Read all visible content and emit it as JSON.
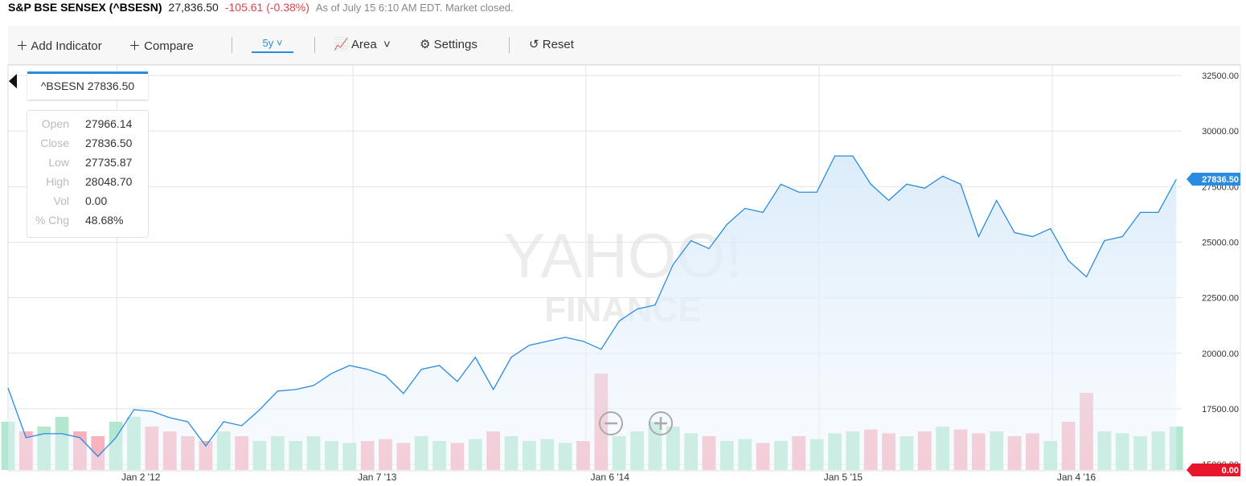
{
  "header": {
    "title": "S&P BSE SENSEX (^BSESN)",
    "price": "27,836.50",
    "change": "-105.61 (-0.38%)",
    "status": "As of July 15 6:10 AM EDT. Market closed."
  },
  "toolbar": {
    "add_indicator": "Add Indicator",
    "compare": "Compare",
    "range": "5y",
    "chart_type": "Area",
    "settings": "Settings",
    "reset": "Reset"
  },
  "tooltip": {
    "title": "^BSESN 27836.50",
    "rows": [
      {
        "label": "Open",
        "value": "27966.14"
      },
      {
        "label": "Close",
        "value": "27836.50"
      },
      {
        "label": "Low",
        "value": "27735.87"
      },
      {
        "label": "High",
        "value": "28048.70"
      },
      {
        "label": "Vol",
        "value": "0.00"
      },
      {
        "label": "% Chg",
        "value": "48.68%"
      }
    ]
  },
  "watermark": {
    "line1": "YAHOO!",
    "line2": "FINANCE"
  },
  "volume_tag": "0.00",
  "chart_data": {
    "type": "area",
    "color": "#2a8ce0",
    "x": [
      0,
      4,
      8,
      12,
      16,
      20,
      24,
      28,
      32,
      36,
      40,
      44,
      48,
      52,
      56,
      60,
      64,
      68,
      72,
      76,
      80,
      84,
      88,
      92,
      96,
      100,
      104,
      108,
      112,
      116,
      120,
      124,
      128,
      132,
      136,
      140,
      144,
      148,
      152,
      156,
      160,
      164,
      168,
      172,
      176,
      180,
      184,
      188,
      192,
      196,
      200,
      204,
      208,
      212,
      216,
      220,
      224,
      228,
      232,
      236,
      240,
      244,
      248,
      252,
      256,
      260
    ],
    "values": [
      18440,
      16200,
      16380,
      16380,
      16200,
      15360,
      16200,
      17460,
      17390,
      17100,
      16920,
      15830,
      16920,
      16740,
      17460,
      18300,
      18370,
      18550,
      19090,
      19450,
      19280,
      18990,
      18190,
      19280,
      19450,
      18730,
      19820,
      18370,
      19820,
      20360,
      20540,
      20720,
      20540,
      20180,
      21450,
      21990,
      22170,
      23990,
      25070,
      24710,
      25800,
      26520,
      26340,
      27610,
      27250,
      27250,
      28880,
      28880,
      27610,
      26880,
      27610,
      27430,
      27970,
      27610,
      25250,
      26880,
      25430,
      25250,
      25610,
      24170,
      23440,
      25070,
      25250,
      26340,
      26340,
      27836.5
    ],
    "volume": [
      50,
      40,
      45,
      55,
      40,
      35,
      50,
      55,
      45,
      40,
      35,
      30,
      40,
      35,
      30,
      35,
      30,
      35,
      30,
      28,
      30,
      32,
      28,
      35,
      30,
      28,
      32,
      40,
      35,
      30,
      32,
      28,
      30,
      100,
      35,
      40,
      50,
      45,
      38,
      35,
      30,
      32,
      28,
      30,
      35,
      32,
      38,
      40,
      42,
      38,
      35,
      40,
      45,
      42,
      38,
      40,
      35,
      38,
      30,
      50,
      80,
      40,
      38,
      35,
      40,
      45
    ],
    "current_price": {
      "value": 27836.5,
      "label": "27836.50"
    },
    "xlim": [
      0,
      261.2
    ],
    "ylim": [
      14750,
      32970
    ],
    "xticks": [
      {
        "value": 24.2,
        "label": "Jan 2 '12"
      },
      {
        "value": 76.8,
        "label": "Jan 7 '13"
      },
      {
        "value": 128.6,
        "label": "Jan 6 '14"
      },
      {
        "value": 180.5,
        "label": "Jan 5 '15"
      },
      {
        "value": 232.4,
        "label": "Jan 4 '16"
      }
    ],
    "yticks": [
      {
        "value": 15000,
        "label": "15000.00"
      },
      {
        "value": 17500,
        "label": "17500.00"
      },
      {
        "value": 20000,
        "label": "20000.00"
      },
      {
        "value": 22500,
        "label": "22500.00"
      },
      {
        "value": 25000,
        "label": "25000.00"
      },
      {
        "value": 27500,
        "label": "27500.00"
      },
      {
        "value": 30000,
        "label": "30000.00"
      },
      {
        "value": 32500,
        "label": "32500.00"
      }
    ],
    "grid": true
  }
}
